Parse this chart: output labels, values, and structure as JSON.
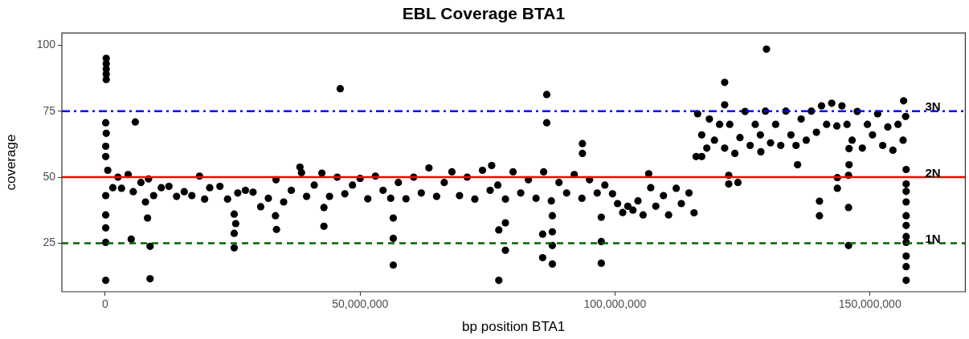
{
  "chart_data": {
    "type": "scatter",
    "title": "EBL Coverage BTA1",
    "xlabel": "bp position BTA1",
    "ylabel": "coverage",
    "xlim": [
      -8500000,
      168700000
    ],
    "xticks": [
      {
        "value": 0,
        "label": "0"
      },
      {
        "value": 50000000,
        "label": "50,000,000"
      },
      {
        "value": 100000000,
        "label": "100,000,000"
      },
      {
        "value": 150000000,
        "label": "150,000,000"
      }
    ],
    "ylim": [
      6.6,
      104.6
    ],
    "yticks": [
      25,
      50,
      75,
      100
    ],
    "grid": false,
    "legend": false,
    "marker": "circle",
    "ref_lines": [
      {
        "axis": "y",
        "value": 75,
        "label": "3N",
        "color": "#0000ff",
        "line_style": "dashdot"
      },
      {
        "axis": "y",
        "value": 50,
        "label": "2N",
        "color": "#ff0000",
        "line_style": "solid"
      },
      {
        "axis": "y",
        "value": 25,
        "label": "1N",
        "color": "#006400",
        "line_style": "dashed"
      }
    ],
    "series": [
      {
        "color": "#000000",
        "x": [
          200000,
          200000,
          200000,
          200000,
          200000,
          100000,
          200000,
          100000,
          100000,
          100000,
          100000,
          100000,
          100000,
          100000,
          5900000,
          5100000,
          7900000,
          8300000,
          8800000,
          8800000,
          25300000,
          25600000,
          25300000,
          25300000,
          33600000,
          33400000,
          38200000,
          42900000,
          42900000,
          46100000,
          500000,
          1500000,
          2500000,
          3200000,
          4500000,
          5500000,
          7000000,
          8500000,
          9500000,
          11000000,
          12500000,
          14000000,
          15500000,
          17000000,
          18500000,
          19500000,
          20500000,
          22500000,
          24000000,
          26000000,
          27500000,
          29000000,
          30500000,
          32000000,
          33500000,
          35000000,
          36500000,
          38500000,
          39500000,
          41000000,
          42500000,
          44000000,
          45500000,
          47000000,
          48500000,
          50000000,
          51500000,
          53000000,
          54500000,
          56000000,
          57500000,
          59000000,
          60500000,
          62000000,
          63500000,
          65000000,
          66500000,
          68000000,
          69500000,
          71000000,
          72500000,
          74000000,
          75500000,
          77000000,
          78500000,
          80000000,
          81500000,
          83000000,
          84500000,
          86000000,
          87500000,
          89000000,
          90500000,
          92000000,
          93500000,
          95000000,
          96500000,
          98000000,
          99500000,
          100500000,
          101500000,
          102500000,
          103500000,
          104500000,
          105500000,
          107000000,
          108000000,
          109500000,
          110500000,
          112000000,
          113000000,
          114500000,
          115500000,
          56500000,
          56500000,
          56500000,
          75800000,
          77200000,
          77200000,
          78500000,
          78500000,
          86600000,
          86600000,
          85800000,
          85800000,
          87700000,
          87700000,
          87700000,
          87700000,
          93600000,
          93600000,
          97300000,
          97300000,
          97300000,
          106600000,
          115900000,
          116200000,
          117000000,
          118000000,
          118500000,
          119500000,
          120500000,
          121500000,
          122500000,
          123500000,
          124500000,
          125500000,
          126500000,
          127500000,
          128500000,
          129500000,
          130500000,
          131500000,
          132500000,
          133500000,
          134500000,
          135500000,
          136500000,
          137500000,
          138500000,
          139500000,
          140500000,
          141500000,
          142500000,
          143500000,
          144500000,
          145500000,
          146500000,
          147500000,
          148500000,
          149500000,
          150500000,
          151500000,
          152500000,
          153500000,
          154500000,
          155500000,
          156500000,
          157000000,
          129700000,
          121500000,
          121500000,
          122300000,
          122300000,
          124100000,
          117000000,
          128600000,
          135800000,
          140100000,
          140100000,
          143600000,
          143600000,
          145800000,
          145800000,
          145800000,
          145900000,
          145900000,
          156600000,
          157100000,
          157100000,
          157100000,
          157100000,
          157100000,
          157100000,
          157100000,
          157100000,
          157100000,
          157100000,
          157100000
        ],
        "values": [
          95,
          93,
          91,
          89,
          87,
          70.6,
          66.6,
          61.7,
          57.8,
          43,
          35.7,
          30.8,
          25.3,
          10.9,
          70.9,
          26.5,
          40.6,
          34.5,
          23.8,
          11.5,
          36,
          32.4,
          28.7,
          23.2,
          30.2,
          35.4,
          53.8,
          38.5,
          31.4,
          83.5,
          52.6,
          46,
          50,
          45.8,
          51,
          44.5,
          48,
          49.3,
          43,
          46,
          46.5,
          42.7,
          44.5,
          43,
          50.4,
          41.7,
          46,
          46.5,
          41.7,
          44,
          45,
          44.3,
          38.8,
          42,
          49,
          40.6,
          45,
          51.7,
          42.7,
          47,
          51.5,
          42.7,
          50,
          43.7,
          47,
          49.5,
          41.8,
          50.4,
          45,
          42,
          48,
          41.8,
          50,
          44,
          53.5,
          42.7,
          48,
          52,
          43,
          50,
          41.7,
          52.6,
          45,
          47,
          41.7,
          52,
          44,
          49,
          42,
          52,
          41,
          48,
          44,
          51,
          42,
          49,
          44,
          47,
          43.7,
          40,
          36.6,
          39,
          37.5,
          41,
          35.7,
          46,
          39,
          43,
          35.7,
          45.8,
          40,
          44,
          36.5,
          34.5,
          26.8,
          16.7,
          54.4,
          30,
          10.9,
          32.7,
          22.3,
          81.3,
          70.6,
          28.4,
          19.5,
          35.4,
          29.3,
          24.1,
          17.1,
          62.7,
          59,
          34.8,
          25.6,
          17.4,
          51.3,
          57.8,
          74,
          66,
          61,
          72,
          64,
          70,
          61,
          70,
          59,
          65,
          74.9,
          62,
          70,
          66,
          75,
          63,
          70,
          62,
          75,
          66,
          62,
          72,
          64,
          75,
          67,
          77,
          70,
          78,
          69.4,
          77,
          70,
          64,
          74.9,
          61,
          70,
          66,
          74,
          62,
          69,
          60.2,
          70,
          64,
          73,
          98.5,
          85.9,
          77.4,
          50.7,
          47.4,
          48,
          57.8,
          59.6,
          54.7,
          40.9,
          35.4,
          49.8,
          45.8,
          50.7,
          38.5,
          24.1,
          60.8,
          54.7,
          78.9,
          52.9,
          47.4,
          44.6,
          40.6,
          35.4,
          31.7,
          27.5,
          25.3,
          20.1,
          16.1,
          10.9
        ]
      }
    ]
  }
}
